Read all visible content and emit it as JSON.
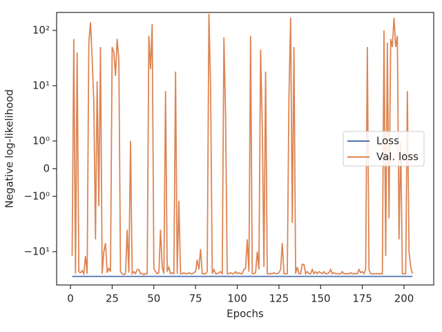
{
  "chart_data": {
    "type": "line",
    "x_label": "Epochs",
    "y_label": "Negative log-likelihood",
    "y_scale": "symlog",
    "xlim": [
      -8.3,
      217.8
    ],
    "xticks": [
      0,
      25,
      50,
      75,
      100,
      125,
      150,
      175,
      200
    ],
    "ylim": [
      -40,
      211
    ],
    "yticks": [
      {
        "value": 100,
        "label": "10²"
      },
      {
        "value": 10,
        "label": "10¹"
      },
      {
        "value": 1,
        "label": "10⁰"
      },
      0,
      {
        "value": -1,
        "label": "−10⁰"
      },
      {
        "value": -10,
        "label": "−10¹"
      }
    ],
    "legend": "center right",
    "x": [
      1,
      2,
      3,
      4,
      5,
      6,
      7,
      8,
      9,
      10,
      11,
      12,
      13,
      14,
      15,
      16,
      17,
      18,
      19,
      20,
      21,
      22,
      23,
      24,
      25,
      26,
      27,
      28,
      29,
      30,
      31,
      32,
      33,
      34,
      35,
      36,
      37,
      38,
      39,
      40,
      41,
      42,
      43,
      44,
      45,
      46,
      47,
      48,
      49,
      50,
      51,
      52,
      53,
      54,
      55,
      56,
      57,
      58,
      59,
      60,
      61,
      62,
      63,
      64,
      65,
      66,
      67,
      68,
      69,
      70,
      71,
      72,
      73,
      74,
      75,
      76,
      77,
      78,
      79,
      80,
      81,
      82,
      83,
      84,
      85,
      86,
      87,
      88,
      89,
      90,
      91,
      92,
      93,
      94,
      95,
      96,
      97,
      98,
      99,
      100,
      101,
      102,
      103,
      104,
      105,
      106,
      107,
      108,
      109,
      110,
      111,
      112,
      113,
      114,
      115,
      116,
      117,
      118,
      119,
      120,
      121,
      122,
      123,
      124,
      125,
      126,
      127,
      128,
      129,
      130,
      131,
      132,
      133,
      134,
      135,
      136,
      137,
      138,
      139,
      140,
      141,
      142,
      143,
      144,
      145,
      146,
      147,
      148,
      149,
      150,
      151,
      152,
      153,
      154,
      155,
      156,
      157,
      158,
      159,
      160,
      161,
      162,
      163,
      164,
      165,
      166,
      167,
      168,
      169,
      170,
      171,
      172,
      173,
      174,
      175,
      176,
      177,
      178,
      179,
      180,
      181,
      182,
      183,
      184,
      185,
      186,
      187,
      188,
      189,
      190,
      191,
      192,
      193,
      194,
      195,
      196,
      197,
      198,
      199,
      200,
      201,
      202,
      203,
      204,
      205
    ],
    "series": [
      {
        "name": "Loss",
        "color": "#4c72b0",
        "values": [
          -28,
          -28,
          -28,
          -28,
          -28,
          -28,
          -28,
          -28,
          -28,
          -28,
          -28,
          -28,
          -28,
          -28,
          -28,
          -28,
          -28,
          -28,
          -28,
          -28,
          -28,
          -28,
          -28,
          -28,
          -28,
          -28,
          -28,
          -28,
          -28,
          -28,
          -28,
          -28,
          -28,
          -28,
          -28,
          -28,
          -28,
          -28,
          -28,
          -28,
          -28,
          -28,
          -28,
          -28,
          -28,
          -28,
          -28,
          -28,
          -28,
          -28,
          -28,
          -28,
          -28,
          -28,
          -28,
          -28,
          -28,
          -28,
          -28,
          -28,
          -28,
          -28,
          -28,
          -28,
          -28,
          -28,
          -28,
          -28,
          -28,
          -28,
          -28,
          -28,
          -28,
          -28,
          -28,
          -28,
          -28,
          -28,
          -28,
          -28,
          -28,
          -28,
          -28,
          -28,
          -28,
          -28,
          -28,
          -28,
          -28,
          -28,
          -28,
          -28,
          -28,
          -28,
          -28,
          -28,
          -28,
          -28,
          -28,
          -28,
          -28,
          -28,
          -28,
          -28,
          -28,
          -28,
          -28,
          -28,
          -28,
          -28,
          -28,
          -28,
          -28,
          -28,
          -28,
          -28,
          -28,
          -28,
          -28,
          -28,
          -28,
          -28,
          -28,
          -28,
          -28,
          -28,
          -28,
          -28,
          -28,
          -28,
          -28,
          -28,
          -28,
          -28,
          -28,
          -28,
          -28,
          -28,
          -28,
          -28,
          -28,
          -28,
          -28,
          -28,
          -28,
          -28,
          -28,
          -28,
          -28,
          -28,
          -28,
          -28,
          -28,
          -28,
          -28,
          -28,
          -28,
          -28,
          -28,
          -28,
          -28,
          -28,
          -28,
          -28,
          -28,
          -28,
          -28,
          -28,
          -28,
          -28,
          -28,
          -28,
          -28,
          -28,
          -28,
          -28,
          -28,
          -28,
          -28,
          -28,
          -28,
          -28,
          -28,
          -28,
          -28,
          -28,
          -28,
          -28,
          -28,
          -28,
          -28,
          -28,
          -28,
          -28,
          -28,
          -28,
          -28,
          -28,
          -28,
          -28,
          -28,
          -28,
          -28,
          -28,
          -28
        ]
      },
      {
        "name": "Val. loss",
        "color": "#dd8452",
        "values": [
          -12,
          70,
          -25,
          40,
          -23,
          -24,
          -22,
          -25,
          -12,
          -25,
          60,
          140,
          30,
          5,
          -6,
          12,
          -1.5,
          50,
          -25,
          -10,
          -7,
          -24,
          -20,
          -23,
          50,
          40,
          15,
          70,
          30,
          -23,
          -25,
          -26,
          -25,
          -4,
          -24,
          1,
          -25,
          -23,
          -25,
          -21,
          -21,
          -25,
          -25,
          -26,
          -25,
          -25,
          80,
          20,
          130,
          -20,
          -23,
          -25,
          -24,
          -4,
          -19,
          -25,
          8,
          -23,
          -19,
          -25,
          -24,
          -25,
          18,
          -25,
          -1.2,
          -25,
          -25,
          -24,
          -25,
          -25,
          -24,
          -25,
          -25,
          -24,
          -23,
          -14,
          -21,
          -9,
          -25,
          -25,
          -25,
          -23,
          200,
          10,
          -25,
          -21,
          -25,
          -25,
          -24,
          -23,
          -25,
          75,
          3,
          -25,
          -25,
          -24,
          -25,
          -25,
          -23,
          -25,
          -24,
          -25,
          -25,
          -21,
          -20,
          -6,
          -23,
          80,
          -25,
          -25,
          -24,
          -10,
          -21,
          45,
          2,
          -19,
          18,
          -25,
          -25,
          -25,
          -25,
          -24,
          -25,
          -25,
          -24,
          -21,
          -7,
          -25,
          -25,
          -25,
          6,
          170,
          -3,
          50,
          -25,
          -19,
          -25,
          -25,
          -17,
          -17,
          -25,
          -23,
          -25,
          -25,
          -21,
          -25,
          -23,
          -25,
          -23,
          -24,
          -25,
          -23,
          -25,
          -25,
          -24,
          -21,
          -25,
          -24,
          -25,
          -25,
          -25,
          -25,
          -23,
          -25,
          -25,
          -25,
          -25,
          -24,
          -25,
          -25,
          -25,
          -25,
          -21,
          -24,
          -23,
          -25,
          -21,
          50,
          -21,
          -25,
          -25,
          -25,
          -25,
          -25,
          -25,
          -25,
          -25,
          100,
          -12,
          60,
          -2.5,
          70,
          50,
          170,
          50,
          80,
          -6,
          1,
          -25,
          -25,
          -25,
          8,
          -10,
          -19,
          -25
        ]
      }
    ]
  }
}
